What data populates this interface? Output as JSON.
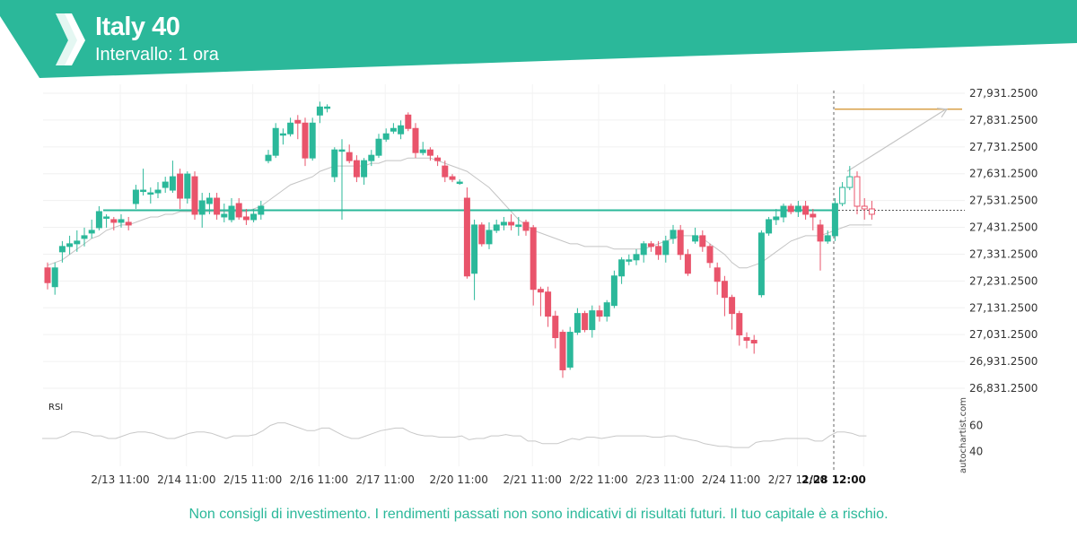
{
  "header": {
    "title": "Italy 40",
    "subtitle": "Intervallo: 1 ora",
    "brand_color": "#2bb89a"
  },
  "disclaimer": "Non consigli di investimento. I rendimenti passati non sono indicativi di risultati futuri. Il tuo capitale è a rischio.",
  "watermark": "autochartist.com",
  "chart_data": {
    "type": "candlestick",
    "y_ticks": [
      "27,931.2500",
      "27,831.2500",
      "27,731.2500",
      "27,631.2500",
      "27,531.2500",
      "27,431.2500",
      "27,331.2500",
      "27,231.2500",
      "27,131.2500",
      "27,031.2500",
      "26,931.2500",
      "26,831.2500"
    ],
    "y_tick_values": [
      27931.25,
      27831.25,
      27731.25,
      27631.25,
      27531.25,
      27431.25,
      27331.25,
      27231.25,
      27131.25,
      27031.25,
      26931.25,
      26831.25
    ],
    "ylim": [
      26771.25,
      27991.25
    ],
    "x_labels": [
      "2/13 11:00",
      "2/14 11:00",
      "2/15 11:00",
      "2/16 11:00",
      "2/17 11:00",
      "2/20 11:00",
      "2/21 11:00",
      "2/22 11:00",
      "2/23 11:00",
      "2/24 11:00",
      "2/27 11:00",
      "2/28 12:00"
    ],
    "x_label_index": [
      5,
      14,
      23,
      32,
      41,
      51,
      61,
      70,
      79,
      88,
      97,
      106
    ],
    "highlight_x_label": "2/28 12:00",
    "colors": {
      "up": "#2bb89a",
      "down": "#e9546b",
      "support": "#2bb89a",
      "target": "#d9a24a",
      "ma": "#c4c4c4",
      "forecast": "#c4c4c4"
    },
    "support_level": 27495,
    "target_level": 27872,
    "last_price": 27497,
    "candles": [
      [
        27280,
        27225,
        27300,
        27200
      ],
      [
        27210,
        27280,
        27300,
        27180
      ],
      [
        27340,
        27360,
        27380,
        27300
      ],
      [
        27360,
        27370,
        27400,
        27330
      ],
      [
        27370,
        27380,
        27420,
        27340
      ],
      [
        27390,
        27400,
        27430,
        27360
      ],
      [
        27410,
        27420,
        27460,
        27390
      ],
      [
        27430,
        27490,
        27510,
        27420
      ],
      [
        27470,
        27470,
        27480,
        27430
      ],
      [
        27460,
        27450,
        27470,
        27420
      ],
      [
        27450,
        27460,
        27480,
        27430
      ],
      [
        27450,
        27440,
        27470,
        27420
      ],
      [
        27520,
        27570,
        27590,
        27500
      ],
      [
        27570,
        27570,
        27650,
        27550
      ],
      [
        27560,
        27560,
        27580,
        27520
      ],
      [
        27560,
        27570,
        27600,
        27540
      ],
      [
        27580,
        27600,
        27620,
        27560
      ],
      [
        27570,
        27620,
        27680,
        27560
      ],
      [
        27630,
        27540,
        27650,
        27500
      ],
      [
        27540,
        27630,
        27640,
        27520
      ],
      [
        27620,
        27480,
        27640,
        27460
      ],
      [
        27480,
        27530,
        27560,
        27430
      ],
      [
        27520,
        27540,
        27560,
        27480
      ],
      [
        27540,
        27480,
        27560,
        27460
      ],
      [
        27470,
        27480,
        27520,
        27450
      ],
      [
        27460,
        27510,
        27540,
        27450
      ],
      [
        27520,
        27470,
        27540,
        27460
      ],
      [
        27470,
        27460,
        27500,
        27440
      ],
      [
        27460,
        27480,
        27500,
        27450
      ],
      [
        27480,
        27510,
        27530,
        27460
      ],
      [
        27680,
        27700,
        27720,
        27670
      ],
      [
        27700,
        27800,
        27820,
        27690
      ],
      [
        27780,
        27780,
        27800,
        27740
      ],
      [
        27780,
        27820,
        27840,
        27770
      ],
      [
        27830,
        27820,
        27850,
        27760
      ],
      [
        27820,
        27690,
        27840,
        27660
      ],
      [
        27690,
        27820,
        27840,
        27680
      ],
      [
        27850,
        27880,
        27900,
        27820
      ],
      [
        27880,
        27880,
        27890,
        27860
      ],
      [
        27620,
        27720,
        27730,
        27600
      ],
      [
        27720,
        27720,
        27760,
        27460
      ],
      [
        27710,
        27680,
        27740,
        27670
      ],
      [
        27680,
        27620,
        27700,
        27600
      ],
      [
        27620,
        27680,
        27690,
        27590
      ],
      [
        27680,
        27700,
        27720,
        27660
      ],
      [
        27700,
        27760,
        27780,
        27690
      ],
      [
        27760,
        27780,
        27800,
        27750
      ],
      [
        27790,
        27800,
        27820,
        27780
      ],
      [
        27780,
        27810,
        27830,
        27760
      ],
      [
        27850,
        27800,
        27860,
        27790
      ],
      [
        27800,
        27710,
        27820,
        27690
      ],
      [
        27710,
        27720,
        27750,
        27700
      ],
      [
        27720,
        27700,
        27730,
        27680
      ],
      [
        27690,
        27680,
        27700,
        27660
      ],
      [
        27660,
        27620,
        27680,
        27600
      ],
      [
        27620,
        27610,
        27630,
        27600
      ],
      [
        27600,
        27600,
        27610,
        27590
      ],
      [
        27540,
        27250,
        27580,
        27240
      ],
      [
        27260,
        27440,
        27460,
        27160
      ],
      [
        27440,
        27370,
        27450,
        27360
      ],
      [
        27370,
        27420,
        27450,
        27350
      ],
      [
        27420,
        27440,
        27460,
        27410
      ],
      [
        27440,
        27450,
        27470,
        27420
      ],
      [
        27450,
        27440,
        27480,
        27420
      ],
      [
        27440,
        27440,
        27470,
        27400
      ],
      [
        27450,
        27420,
        27460,
        27400
      ],
      [
        27430,
        27200,
        27440,
        27140
      ],
      [
        27200,
        27190,
        27210,
        27100
      ],
      [
        27190,
        27100,
        27210,
        27060
      ],
      [
        27100,
        27020,
        27120,
        26980
      ],
      [
        27040,
        26900,
        27050,
        26870
      ],
      [
        26910,
        27040,
        27060,
        26900
      ],
      [
        27040,
        27110,
        27130,
        27030
      ],
      [
        27110,
        27050,
        27120,
        27040
      ],
      [
        27050,
        27120,
        27140,
        27020
      ],
      [
        27120,
        27100,
        27140,
        27080
      ],
      [
        27100,
        27150,
        27160,
        27080
      ],
      [
        27140,
        27250,
        27270,
        27130
      ],
      [
        27250,
        27310,
        27320,
        27220
      ],
      [
        27310,
        27310,
        27330,
        27290
      ],
      [
        27310,
        27330,
        27350,
        27290
      ],
      [
        27330,
        27370,
        27380,
        27300
      ],
      [
        27370,
        27360,
        27380,
        27340
      ],
      [
        27360,
        27330,
        27380,
        27310
      ],
      [
        27330,
        27380,
        27400,
        27300
      ],
      [
        27390,
        27420,
        27440,
        27370
      ],
      [
        27420,
        27330,
        27440,
        27310
      ],
      [
        27330,
        27260,
        27350,
        27250
      ],
      [
        27380,
        27400,
        27430,
        27370
      ],
      [
        27400,
        27360,
        27420,
        27340
      ],
      [
        27360,
        27300,
        27370,
        27280
      ],
      [
        27280,
        27230,
        27300,
        27180
      ],
      [
        27230,
        27170,
        27250,
        27100
      ],
      [
        27170,
        27110,
        27180,
        27050
      ],
      [
        27110,
        27030,
        27120,
        26990
      ],
      [
        27020,
        27010,
        27040,
        26980
      ],
      [
        27010,
        27000,
        27030,
        26960
      ],
      [
        27180,
        27410,
        27420,
        27170
      ],
      [
        27410,
        27460,
        27470,
        27400
      ],
      [
        27460,
        27470,
        27500,
        27440
      ],
      [
        27470,
        27510,
        27520,
        27450
      ],
      [
        27510,
        27490,
        27520,
        27480
      ],
      [
        27490,
        27510,
        27530,
        27470
      ],
      [
        27510,
        27480,
        27530,
        27460
      ],
      [
        27480,
        27470,
        27500,
        27420
      ],
      [
        27440,
        27380,
        27460,
        27270
      ],
      [
        27380,
        27400,
        27420,
        27370
      ],
      [
        27400,
        27520,
        27540,
        27380
      ],
      [
        27520,
        27580,
        27600,
        27510
      ],
      [
        27580,
        27620,
        27660,
        27570
      ],
      [
        27620,
        27510,
        27640,
        27480
      ],
      [
        27510,
        27500,
        27540,
        27460
      ],
      [
        27500,
        27480,
        27530,
        27460
      ]
    ],
    "ma": [
      27290,
      27300,
      27310,
      27330,
      27350,
      27370,
      27390,
      27400,
      27420,
      27430,
      27440,
      27440,
      27450,
      27460,
      27470,
      27470,
      27480,
      27480,
      27490,
      27490,
      27490,
      27490,
      27490,
      27490,
      27490,
      27490,
      27490,
      27490,
      27500,
      27510,
      27530,
      27550,
      27570,
      27590,
      27600,
      27610,
      27620,
      27640,
      27650,
      27660,
      27660,
      27660,
      27660,
      27660,
      27670,
      27670,
      27680,
      27680,
      27680,
      27690,
      27690,
      27690,
      27690,
      27680,
      27670,
      27660,
      27650,
      27640,
      27620,
      27600,
      27580,
      27550,
      27520,
      27490,
      27460,
      27440,
      27420,
      27410,
      27400,
      27390,
      27380,
      27370,
      27370,
      27360,
      27360,
      27360,
      27360,
      27350,
      27350,
      27350,
      27350,
      27350,
      27360,
      27370,
      27380,
      27390,
      27400,
      27400,
      27400,
      27390,
      27370,
      27350,
      27330,
      27300,
      27280,
      27280,
      27290,
      27300,
      27320,
      27340,
      27360,
      27380,
      27390,
      27400,
      27400,
      27400,
      27410,
      27420,
      27430,
      27440,
      27440,
      27440,
      27440
    ],
    "forecast": {
      "from_value": 27640,
      "to_value": 27872
    },
    "rsi": {
      "label": "RSI",
      "ticks": [
        "60",
        "40"
      ],
      "tick_values": [
        60,
        40
      ],
      "ylim": [
        30,
        70
      ],
      "values": [
        50,
        50,
        50,
        52,
        55,
        55,
        54,
        52,
        52,
        50,
        50,
        52,
        54,
        55,
        55,
        54,
        52,
        50,
        50,
        52,
        54,
        55,
        55,
        54,
        52,
        50,
        52,
        52,
        52,
        53,
        56,
        60,
        62,
        62,
        60,
        58,
        56,
        56,
        58,
        58,
        55,
        52,
        50,
        50,
        52,
        54,
        56,
        57,
        58,
        58,
        55,
        53,
        52,
        52,
        51,
        51,
        51,
        52,
        49,
        50,
        50,
        52,
        52,
        53,
        52,
        52,
        48,
        48,
        46,
        46,
        46,
        48,
        50,
        49,
        51,
        51,
        50,
        51,
        52,
        52,
        52,
        52,
        52,
        51,
        51,
        52,
        52,
        50,
        49,
        48,
        46,
        45,
        44,
        44,
        43,
        43,
        43,
        47,
        48,
        48,
        49,
        50,
        50,
        50,
        50,
        48,
        48,
        52,
        55,
        55,
        54,
        52,
        52
      ]
    }
  }
}
